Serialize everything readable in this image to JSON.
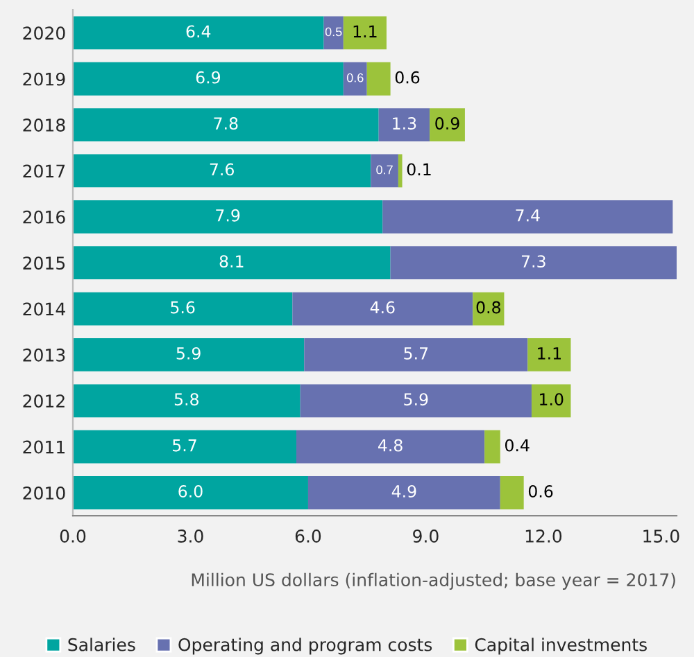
{
  "chart_data": {
    "type": "bar",
    "orientation": "horizontal",
    "stacked": true,
    "categories": [
      "2020",
      "2019",
      "2018",
      "2017",
      "2016",
      "2015",
      "2014",
      "2013",
      "2012",
      "2011",
      "2010"
    ],
    "series": [
      {
        "name": "Salaries",
        "color": "#00a5a0",
        "values": [
          6.4,
          6.9,
          7.8,
          7.6,
          7.9,
          8.1,
          5.6,
          5.9,
          5.8,
          5.7,
          6.0
        ],
        "value_labels": [
          "6.4",
          "6.9",
          "7.8",
          "7.6",
          "7.9",
          "8.1",
          "5.6",
          "5.9",
          "5.8",
          "5.7",
          "6.0"
        ]
      },
      {
        "name": "Operating and program costs",
        "color": "#6771b0",
        "values": [
          0.5,
          0.6,
          1.3,
          0.7,
          7.4,
          7.3,
          4.6,
          5.7,
          5.9,
          4.8,
          4.9
        ],
        "value_labels": [
          "0.5",
          "0.6",
          "1.3",
          "0.7",
          "7.4",
          "7.3",
          "4.6",
          "5.7",
          "5.9",
          "4.8",
          "4.9"
        ]
      },
      {
        "name": "Capital investments",
        "color": "#9cc33b",
        "values": [
          1.1,
          0.6,
          0.9,
          0.1,
          null,
          null,
          0.8,
          1.1,
          1.0,
          0.4,
          0.6
        ],
        "value_labels": [
          "1.1",
          "0.6",
          "0.9",
          "0.1",
          null,
          null,
          "0.8",
          "1.1",
          "1.0",
          "0.4",
          "0.6"
        ]
      }
    ],
    "xlabel": "Million US dollars (inflation-adjusted; base year = 2017)",
    "xlim": [
      0,
      15.4
    ],
    "xticks": [
      {
        "value": 0,
        "label": "0.0"
      },
      {
        "value": 3,
        "label": "3.0"
      },
      {
        "value": 6,
        "label": "6.0"
      },
      {
        "value": 9,
        "label": "9.0"
      },
      {
        "value": 12,
        "label": "12.0"
      },
      {
        "value": 15,
        "label": "15.0"
      }
    ],
    "legend": "bottom",
    "grid": false
  }
}
